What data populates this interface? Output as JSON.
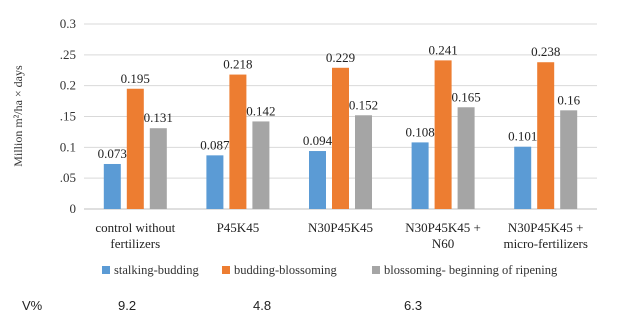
{
  "chart_data": {
    "type": "bar",
    "ylabel": "Million m²/ha × days",
    "ylim": [
      0,
      0.3
    ],
    "yticks": [
      "0",
      ".05",
      "0.1",
      ".15",
      "0.2",
      ".25",
      "0.3"
    ],
    "grid": true,
    "legend_position": "bottom",
    "categories": [
      [
        "control without",
        "fertilizers"
      ],
      [
        "P45K45"
      ],
      [
        "N30P45K45"
      ],
      [
        "N30P45K45 +",
        "N60"
      ],
      [
        "N30P45K45 +",
        "micro-fertilizers"
      ]
    ],
    "series": [
      {
        "name": "stalking-budding",
        "color": "#5b9bd5",
        "values": [
          0.073,
          0.087,
          0.094,
          0.108,
          0.101
        ]
      },
      {
        "name": "budding-blossoming",
        "color": "#ed7d31",
        "values": [
          0.195,
          0.218,
          0.229,
          0.241,
          0.238
        ]
      },
      {
        "name": "blossoming- beginning of ripening",
        "color": "#a5a5a5",
        "values": [
          0.131,
          0.142,
          0.152,
          0.165,
          0.16
        ]
      }
    ]
  },
  "v_row": {
    "label": "V%",
    "values": [
      "9.2",
      "4.8",
      "6.3"
    ]
  }
}
